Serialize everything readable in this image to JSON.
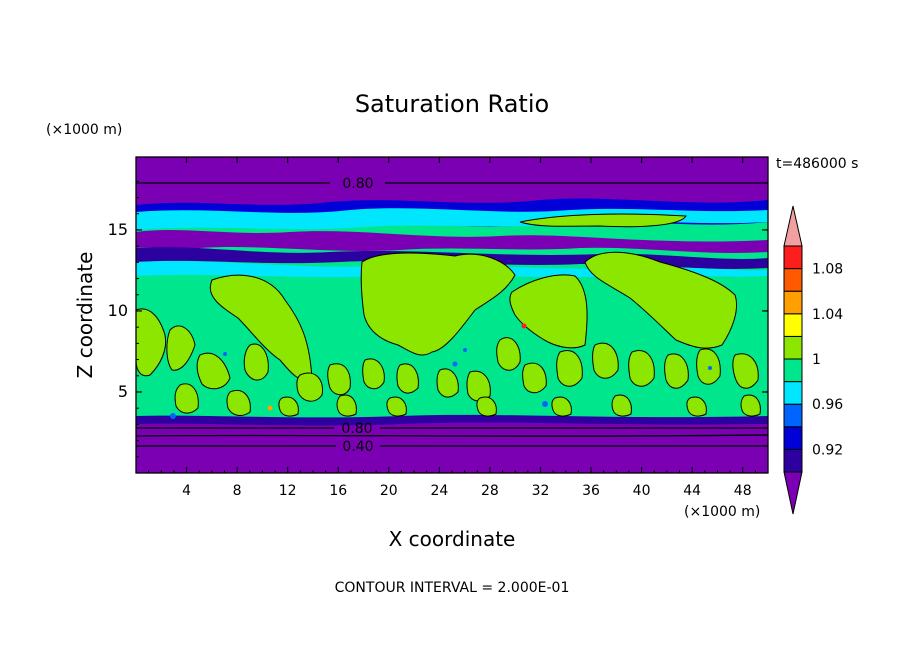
{
  "chart_data": {
    "type": "heatmap",
    "title": "Saturation Ratio",
    "xlabel": "X coordinate",
    "ylabel": "Z coordinate",
    "x_unit": "(×1000 m)",
    "y_unit": "(×1000 m)",
    "time_label": "t=486000 s",
    "footer": "CONTOUR INTERVAL = 2.000E-01",
    "xlim": [
      0,
      50
    ],
    "ylim": [
      0,
      19.5
    ],
    "x_ticks": [
      "4",
      "8",
      "12",
      "16",
      "20",
      "24",
      "28",
      "32",
      "36",
      "40",
      "44",
      "48"
    ],
    "y_ticks": [
      "5",
      "10",
      "15"
    ],
    "contour_labels": [
      "0.80",
      "0.80",
      "0.40"
    ],
    "colorbar": {
      "tick_labels": [
        "0.92",
        "0.96",
        "1",
        "1.04",
        "1.08"
      ],
      "colors": [
        "#7b00b4",
        "#2d00a0",
        "#0000d7",
        "#0064ff",
        "#00e6ff",
        "#00e68c",
        "#8ce600",
        "#ffff00",
        "#ffa000",
        "#ff5a00",
        "#ff1e1e",
        "#f0a0a0"
      ]
    }
  }
}
